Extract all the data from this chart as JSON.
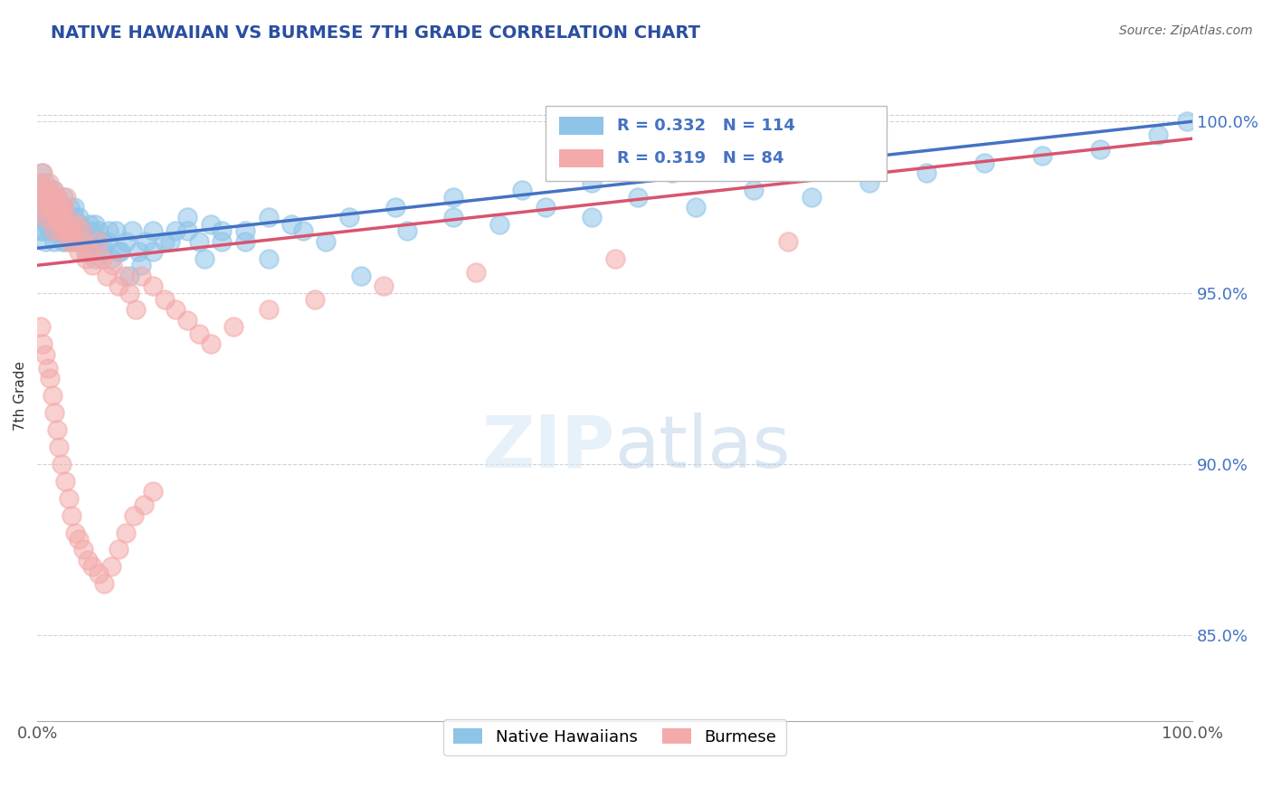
{
  "title": "NATIVE HAWAIIAN VS BURMESE 7TH GRADE CORRELATION CHART",
  "source_text": "Source: ZipAtlas.com",
  "ylabel": "7th Grade",
  "xlim": [
    0,
    1
  ],
  "ylim": [
    0.825,
    1.015
  ],
  "xticks": [
    0.0,
    1.0
  ],
  "xticklabels": [
    "0.0%",
    "100.0%"
  ],
  "ytick_positions": [
    0.85,
    0.9,
    0.95,
    1.0
  ],
  "ytick_labels": [
    "85.0%",
    "90.0%",
    "95.0%",
    "100.0%"
  ],
  "blue_color": "#8EC4E8",
  "pink_color": "#F4AAAA",
  "blue_line_color": "#4472C4",
  "pink_line_color": "#D9546E",
  "title_color": "#2B4EA0",
  "R_blue": 0.332,
  "N_blue": 114,
  "R_pink": 0.319,
  "N_pink": 84,
  "legend_label_blue": "Native Hawaiians",
  "legend_label_pink": "Burmese",
  "blue_points_x": [
    0.002,
    0.003,
    0.004,
    0.005,
    0.005,
    0.006,
    0.007,
    0.008,
    0.009,
    0.01,
    0.011,
    0.012,
    0.013,
    0.014,
    0.015,
    0.016,
    0.017,
    0.018,
    0.019,
    0.02,
    0.021,
    0.022,
    0.023,
    0.024,
    0.025,
    0.026,
    0.027,
    0.028,
    0.029,
    0.03,
    0.032,
    0.034,
    0.036,
    0.038,
    0.04,
    0.042,
    0.045,
    0.048,
    0.05,
    0.053,
    0.056,
    0.06,
    0.064,
    0.068,
    0.072,
    0.077,
    0.082,
    0.088,
    0.094,
    0.1,
    0.11,
    0.12,
    0.13,
    0.14,
    0.15,
    0.16,
    0.18,
    0.2,
    0.22,
    0.25,
    0.28,
    0.32,
    0.36,
    0.4,
    0.44,
    0.48,
    0.52,
    0.57,
    0.62,
    0.67,
    0.72,
    0.77,
    0.82,
    0.87,
    0.92,
    0.97,
    0.995,
    0.003,
    0.005,
    0.007,
    0.009,
    0.011,
    0.013,
    0.016,
    0.019,
    0.022,
    0.025,
    0.028,
    0.032,
    0.036,
    0.04,
    0.045,
    0.05,
    0.056,
    0.062,
    0.07,
    0.08,
    0.09,
    0.1,
    0.115,
    0.13,
    0.145,
    0.16,
    0.18,
    0.2,
    0.23,
    0.27,
    0.31,
    0.36,
    0.42,
    0.48,
    0.55,
    0.62,
    0.7
  ],
  "blue_points_y": [
    0.98,
    0.975,
    0.985,
    0.972,
    0.968,
    0.978,
    0.982,
    0.97,
    0.975,
    0.98,
    0.968,
    0.975,
    0.972,
    0.98,
    0.965,
    0.978,
    0.97,
    0.968,
    0.975,
    0.972,
    0.968,
    0.975,
    0.978,
    0.97,
    0.965,
    0.972,
    0.968,
    0.975,
    0.97,
    0.965,
    0.972,
    0.965,
    0.97,
    0.968,
    0.965,
    0.962,
    0.97,
    0.965,
    0.96,
    0.968,
    0.962,
    0.965,
    0.96,
    0.968,
    0.962,
    0.965,
    0.968,
    0.962,
    0.965,
    0.968,
    0.965,
    0.968,
    0.972,
    0.965,
    0.97,
    0.968,
    0.965,
    0.96,
    0.97,
    0.965,
    0.955,
    0.968,
    0.972,
    0.97,
    0.975,
    0.972,
    0.978,
    0.975,
    0.98,
    0.978,
    0.982,
    0.985,
    0.988,
    0.99,
    0.992,
    0.996,
    1.0,
    0.968,
    0.972,
    0.965,
    0.978,
    0.97,
    0.975,
    0.968,
    0.972,
    0.965,
    0.97,
    0.968,
    0.975,
    0.972,
    0.965,
    0.968,
    0.97,
    0.965,
    0.968,
    0.962,
    0.955,
    0.958,
    0.962,
    0.965,
    0.968,
    0.96,
    0.965,
    0.968,
    0.972,
    0.968,
    0.972,
    0.975,
    0.978,
    0.98,
    0.982,
    0.985,
    0.988,
    0.99
  ],
  "pink_points_x": [
    0.002,
    0.003,
    0.004,
    0.005,
    0.006,
    0.007,
    0.008,
    0.009,
    0.01,
    0.011,
    0.012,
    0.013,
    0.014,
    0.015,
    0.016,
    0.017,
    0.018,
    0.019,
    0.02,
    0.021,
    0.022,
    0.023,
    0.024,
    0.025,
    0.026,
    0.027,
    0.028,
    0.03,
    0.032,
    0.034,
    0.036,
    0.038,
    0.04,
    0.042,
    0.045,
    0.048,
    0.052,
    0.056,
    0.06,
    0.065,
    0.07,
    0.075,
    0.08,
    0.085,
    0.09,
    0.1,
    0.11,
    0.12,
    0.13,
    0.14,
    0.15,
    0.17,
    0.2,
    0.24,
    0.3,
    0.38,
    0.5,
    0.65,
    0.003,
    0.005,
    0.007,
    0.009,
    0.011,
    0.013,
    0.015,
    0.017,
    0.019,
    0.021,
    0.024,
    0.027,
    0.03,
    0.033,
    0.036,
    0.04,
    0.044,
    0.048,
    0.053,
    0.058,
    0.064,
    0.07,
    0.077,
    0.084,
    0.092,
    0.1
  ],
  "pink_points_y": [
    0.978,
    0.982,
    0.975,
    0.985,
    0.972,
    0.978,
    0.98,
    0.975,
    0.982,
    0.972,
    0.978,
    0.975,
    0.98,
    0.968,
    0.975,
    0.972,
    0.978,
    0.97,
    0.975,
    0.968,
    0.972,
    0.975,
    0.968,
    0.978,
    0.972,
    0.965,
    0.97,
    0.968,
    0.965,
    0.97,
    0.962,
    0.968,
    0.965,
    0.96,
    0.962,
    0.958,
    0.965,
    0.96,
    0.955,
    0.958,
    0.952,
    0.955,
    0.95,
    0.945,
    0.955,
    0.952,
    0.948,
    0.945,
    0.942,
    0.938,
    0.935,
    0.94,
    0.945,
    0.948,
    0.952,
    0.956,
    0.96,
    0.965,
    0.94,
    0.935,
    0.932,
    0.928,
    0.925,
    0.92,
    0.915,
    0.91,
    0.905,
    0.9,
    0.895,
    0.89,
    0.885,
    0.88,
    0.878,
    0.875,
    0.872,
    0.87,
    0.868,
    0.865,
    0.87,
    0.875,
    0.88,
    0.885,
    0.888,
    0.892
  ]
}
